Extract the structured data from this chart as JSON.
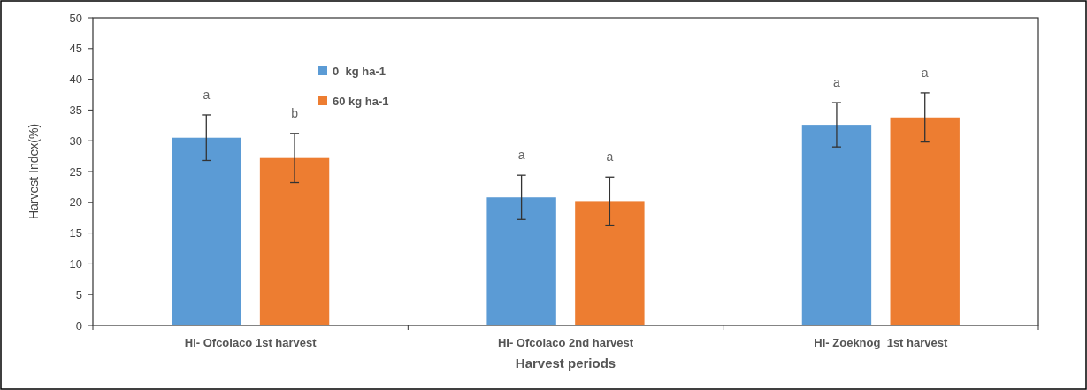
{
  "chart_data": {
    "type": "bar",
    "xlabel": "Harvest periods",
    "ylabel": "Harvest Index(%)",
    "categories": [
      "HI- Ofcolaco 1st harvest",
      "HI- Ofcolaco 2nd harvest",
      "HI- Zoeknog  1st harvest"
    ],
    "series": [
      {
        "name": "0  kg ha-1",
        "color": "#5b9bd5",
        "values": [
          30.5,
          20.8,
          32.6
        ],
        "errors": [
          3.7,
          3.6,
          3.6
        ]
      },
      {
        "name": "60 kg ha-1",
        "color": "#ed7d31",
        "values": [
          27.2,
          20.2,
          33.8
        ],
        "errors": [
          4,
          3.9,
          4
        ]
      }
    ],
    "ylim": [
      0,
      50
    ],
    "yticks": [
      0,
      5,
      10,
      15,
      20,
      25,
      30,
      35,
      40,
      45,
      50
    ],
    "grid": false,
    "legend": "top left",
    "annotations": [
      "a",
      "b",
      "a",
      "a",
      "a",
      "a"
    ]
  }
}
